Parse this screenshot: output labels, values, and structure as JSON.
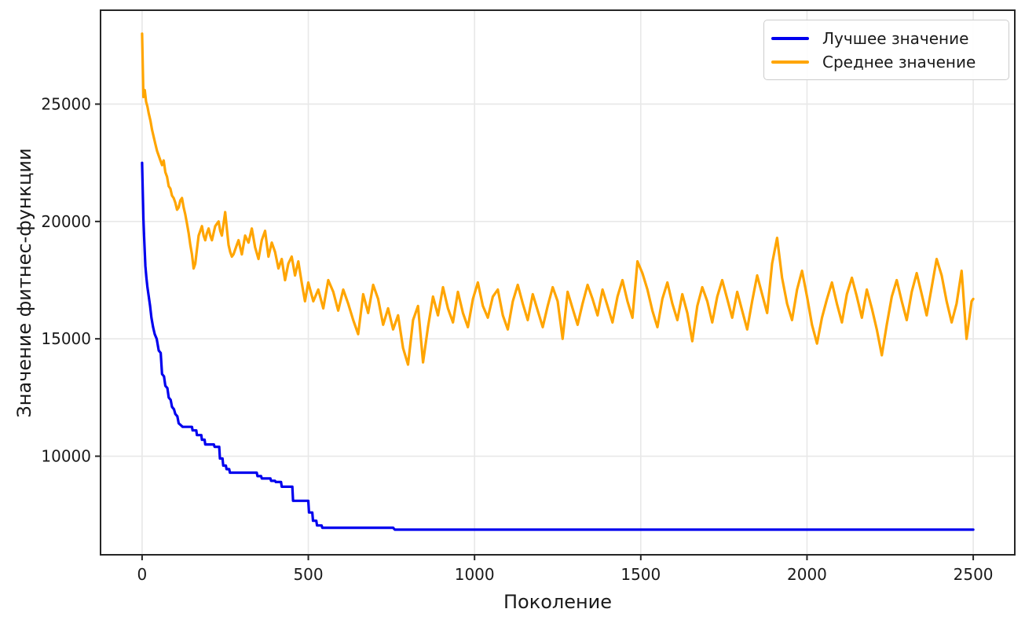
{
  "figure": {
    "background": "#ffffff"
  },
  "chart_data": {
    "type": "line",
    "title": "",
    "xlabel": "Поколение",
    "ylabel": "Значение фитнес-функции",
    "xlim": [
      -125,
      2625
    ],
    "ylim": [
      5800,
      29000
    ],
    "xticks": [
      0,
      500,
      1000,
      1500,
      2000,
      2500
    ],
    "yticks": [
      10000,
      15000,
      20000,
      25000
    ],
    "grid": true,
    "legend_position": "upper-right",
    "series": [
      {
        "name": "Лучшее значение",
        "color": "#0000ee",
        "points": [
          [
            0,
            22500
          ],
          [
            2,
            21200
          ],
          [
            4,
            20100
          ],
          [
            6,
            19400
          ],
          [
            8,
            18700
          ],
          [
            10,
            18100
          ],
          [
            13,
            17600
          ],
          [
            16,
            17200
          ],
          [
            20,
            16800
          ],
          [
            24,
            16400
          ],
          [
            28,
            15900
          ],
          [
            33,
            15500
          ],
          [
            38,
            15200
          ],
          [
            44,
            15000
          ],
          [
            50,
            14500
          ],
          [
            56,
            14400
          ],
          [
            60,
            13500
          ],
          [
            66,
            13400
          ],
          [
            70,
            13000
          ],
          [
            76,
            12900
          ],
          [
            80,
            12500
          ],
          [
            86,
            12400
          ],
          [
            90,
            12100
          ],
          [
            96,
            12000
          ],
          [
            100,
            11800
          ],
          [
            106,
            11700
          ],
          [
            110,
            11400
          ],
          [
            118,
            11300
          ],
          [
            122,
            11250
          ],
          [
            150,
            11250
          ],
          [
            152,
            11100
          ],
          [
            163,
            11100
          ],
          [
            165,
            10900
          ],
          [
            178,
            10900
          ],
          [
            180,
            10700
          ],
          [
            188,
            10700
          ],
          [
            190,
            10500
          ],
          [
            216,
            10500
          ],
          [
            218,
            10400
          ],
          [
            232,
            10400
          ],
          [
            234,
            9900
          ],
          [
            242,
            9900
          ],
          [
            244,
            9600
          ],
          [
            252,
            9600
          ],
          [
            254,
            9450
          ],
          [
            262,
            9450
          ],
          [
            264,
            9300
          ],
          [
            345,
            9300
          ],
          [
            347,
            9150
          ],
          [
            358,
            9150
          ],
          [
            360,
            9050
          ],
          [
            386,
            9050
          ],
          [
            388,
            8950
          ],
          [
            400,
            8950
          ],
          [
            402,
            8900
          ],
          [
            418,
            8900
          ],
          [
            420,
            8700
          ],
          [
            452,
            8700
          ],
          [
            454,
            8100
          ],
          [
            500,
            8100
          ],
          [
            502,
            7600
          ],
          [
            512,
            7600
          ],
          [
            514,
            7250
          ],
          [
            524,
            7250
          ],
          [
            526,
            7050
          ],
          [
            540,
            7050
          ],
          [
            542,
            6950
          ],
          [
            755,
            6950
          ],
          [
            760,
            6870
          ],
          [
            2500,
            6870
          ]
        ]
      },
      {
        "name": "Среднее значение",
        "color": "#ffa500",
        "points": [
          [
            0,
            28000
          ],
          [
            4,
            25300
          ],
          [
            8,
            25600
          ],
          [
            12,
            25100
          ],
          [
            16,
            24900
          ],
          [
            20,
            24600
          ],
          [
            25,
            24300
          ],
          [
            30,
            23900
          ],
          [
            35,
            23600
          ],
          [
            40,
            23300
          ],
          [
            45,
            23000
          ],
          [
            50,
            22800
          ],
          [
            55,
            22600
          ],
          [
            60,
            22400
          ],
          [
            65,
            22600
          ],
          [
            70,
            22100
          ],
          [
            75,
            21900
          ],
          [
            80,
            21500
          ],
          [
            85,
            21400
          ],
          [
            90,
            21100
          ],
          [
            95,
            21000
          ],
          [
            100,
            20800
          ],
          [
            105,
            20500
          ],
          [
            110,
            20600
          ],
          [
            115,
            20900
          ],
          [
            120,
            21000
          ],
          [
            125,
            20600
          ],
          [
            130,
            20300
          ],
          [
            135,
            19900
          ],
          [
            140,
            19500
          ],
          [
            145,
            19000
          ],
          [
            150,
            18600
          ],
          [
            155,
            18000
          ],
          [
            160,
            18200
          ],
          [
            165,
            18800
          ],
          [
            170,
            19400
          ],
          [
            175,
            19600
          ],
          [
            180,
            19800
          ],
          [
            185,
            19400
          ],
          [
            190,
            19200
          ],
          [
            195,
            19500
          ],
          [
            200,
            19700
          ],
          [
            205,
            19400
          ],
          [
            210,
            19200
          ],
          [
            215,
            19500
          ],
          [
            220,
            19800
          ],
          [
            225,
            19900
          ],
          [
            230,
            20000
          ],
          [
            235,
            19600
          ],
          [
            240,
            19400
          ],
          [
            245,
            19900
          ],
          [
            250,
            20400
          ],
          [
            255,
            19700
          ],
          [
            260,
            19000
          ],
          [
            265,
            18700
          ],
          [
            270,
            18500
          ],
          [
            275,
            18600
          ],
          [
            280,
            18800
          ],
          [
            285,
            19000
          ],
          [
            290,
            19200
          ],
          [
            295,
            18900
          ],
          [
            300,
            18600
          ],
          [
            310,
            19400
          ],
          [
            320,
            19100
          ],
          [
            330,
            19700
          ],
          [
            340,
            18900
          ],
          [
            350,
            18400
          ],
          [
            360,
            19200
          ],
          [
            370,
            19600
          ],
          [
            380,
            18500
          ],
          [
            390,
            19100
          ],
          [
            400,
            18700
          ],
          [
            410,
            18000
          ],
          [
            420,
            18400
          ],
          [
            430,
            17500
          ],
          [
            440,
            18200
          ],
          [
            450,
            18500
          ],
          [
            460,
            17700
          ],
          [
            470,
            18300
          ],
          [
            480,
            17400
          ],
          [
            490,
            16600
          ],
          [
            500,
            17400
          ],
          [
            515,
            16600
          ],
          [
            530,
            17100
          ],
          [
            545,
            16300
          ],
          [
            560,
            17500
          ],
          [
            575,
            17000
          ],
          [
            590,
            16200
          ],
          [
            605,
            17100
          ],
          [
            620,
            16500
          ],
          [
            635,
            15800
          ],
          [
            650,
            15200
          ],
          [
            665,
            16900
          ],
          [
            680,
            16100
          ],
          [
            695,
            17300
          ],
          [
            710,
            16700
          ],
          [
            725,
            15600
          ],
          [
            740,
            16300
          ],
          [
            755,
            15400
          ],
          [
            770,
            16000
          ],
          [
            785,
            14600
          ],
          [
            800,
            13900
          ],
          [
            815,
            15800
          ],
          [
            830,
            16400
          ],
          [
            845,
            14000
          ],
          [
            860,
            15500
          ],
          [
            875,
            16800
          ],
          [
            890,
            16000
          ],
          [
            905,
            17200
          ],
          [
            920,
            16300
          ],
          [
            935,
            15700
          ],
          [
            950,
            17000
          ],
          [
            965,
            16100
          ],
          [
            980,
            15500
          ],
          [
            995,
            16700
          ],
          [
            1010,
            17400
          ],
          [
            1025,
            16400
          ],
          [
            1040,
            15900
          ],
          [
            1055,
            16800
          ],
          [
            1070,
            17100
          ],
          [
            1085,
            16000
          ],
          [
            1100,
            15400
          ],
          [
            1115,
            16600
          ],
          [
            1130,
            17300
          ],
          [
            1145,
            16500
          ],
          [
            1160,
            15800
          ],
          [
            1175,
            16900
          ],
          [
            1190,
            16200
          ],
          [
            1205,
            15500
          ],
          [
            1220,
            16400
          ],
          [
            1235,
            17200
          ],
          [
            1250,
            16600
          ],
          [
            1265,
            15000
          ],
          [
            1280,
            17000
          ],
          [
            1295,
            16300
          ],
          [
            1310,
            15600
          ],
          [
            1325,
            16500
          ],
          [
            1340,
            17300
          ],
          [
            1355,
            16700
          ],
          [
            1370,
            16000
          ],
          [
            1385,
            17100
          ],
          [
            1400,
            16400
          ],
          [
            1415,
            15700
          ],
          [
            1430,
            16800
          ],
          [
            1445,
            17500
          ],
          [
            1460,
            16600
          ],
          [
            1475,
            15900
          ],
          [
            1490,
            18300
          ],
          [
            1505,
            17800
          ],
          [
            1520,
            17100
          ],
          [
            1535,
            16200
          ],
          [
            1550,
            15500
          ],
          [
            1565,
            16700
          ],
          [
            1580,
            17400
          ],
          [
            1595,
            16500
          ],
          [
            1610,
            15800
          ],
          [
            1625,
            16900
          ],
          [
            1640,
            16100
          ],
          [
            1655,
            14900
          ],
          [
            1670,
            16400
          ],
          [
            1685,
            17200
          ],
          [
            1700,
            16600
          ],
          [
            1715,
            15700
          ],
          [
            1730,
            16800
          ],
          [
            1745,
            17500
          ],
          [
            1760,
            16700
          ],
          [
            1775,
            15900
          ],
          [
            1790,
            17000
          ],
          [
            1805,
            16200
          ],
          [
            1820,
            15400
          ],
          [
            1835,
            16600
          ],
          [
            1850,
            17700
          ],
          [
            1865,
            16900
          ],
          [
            1880,
            16100
          ],
          [
            1895,
            18200
          ],
          [
            1910,
            19300
          ],
          [
            1925,
            17600
          ],
          [
            1940,
            16500
          ],
          [
            1955,
            15800
          ],
          [
            1970,
            17100
          ],
          [
            1985,
            17900
          ],
          [
            2000,
            16800
          ],
          [
            2015,
            15600
          ],
          [
            2030,
            14800
          ],
          [
            2045,
            15900
          ],
          [
            2060,
            16700
          ],
          [
            2075,
            17400
          ],
          [
            2090,
            16500
          ],
          [
            2105,
            15700
          ],
          [
            2120,
            16900
          ],
          [
            2135,
            17600
          ],
          [
            2150,
            16800
          ],
          [
            2165,
            15900
          ],
          [
            2180,
            17100
          ],
          [
            2195,
            16300
          ],
          [
            2210,
            15400
          ],
          [
            2225,
            14300
          ],
          [
            2240,
            15600
          ],
          [
            2255,
            16800
          ],
          [
            2270,
            17500
          ],
          [
            2285,
            16600
          ],
          [
            2300,
            15800
          ],
          [
            2315,
            17000
          ],
          [
            2330,
            17800
          ],
          [
            2345,
            16900
          ],
          [
            2360,
            16000
          ],
          [
            2375,
            17200
          ],
          [
            2390,
            18400
          ],
          [
            2405,
            17700
          ],
          [
            2420,
            16600
          ],
          [
            2435,
            15700
          ],
          [
            2450,
            16500
          ],
          [
            2465,
            17900
          ],
          [
            2480,
            15000
          ],
          [
            2495,
            16600
          ],
          [
            2500,
            16700
          ]
        ]
      }
    ]
  }
}
